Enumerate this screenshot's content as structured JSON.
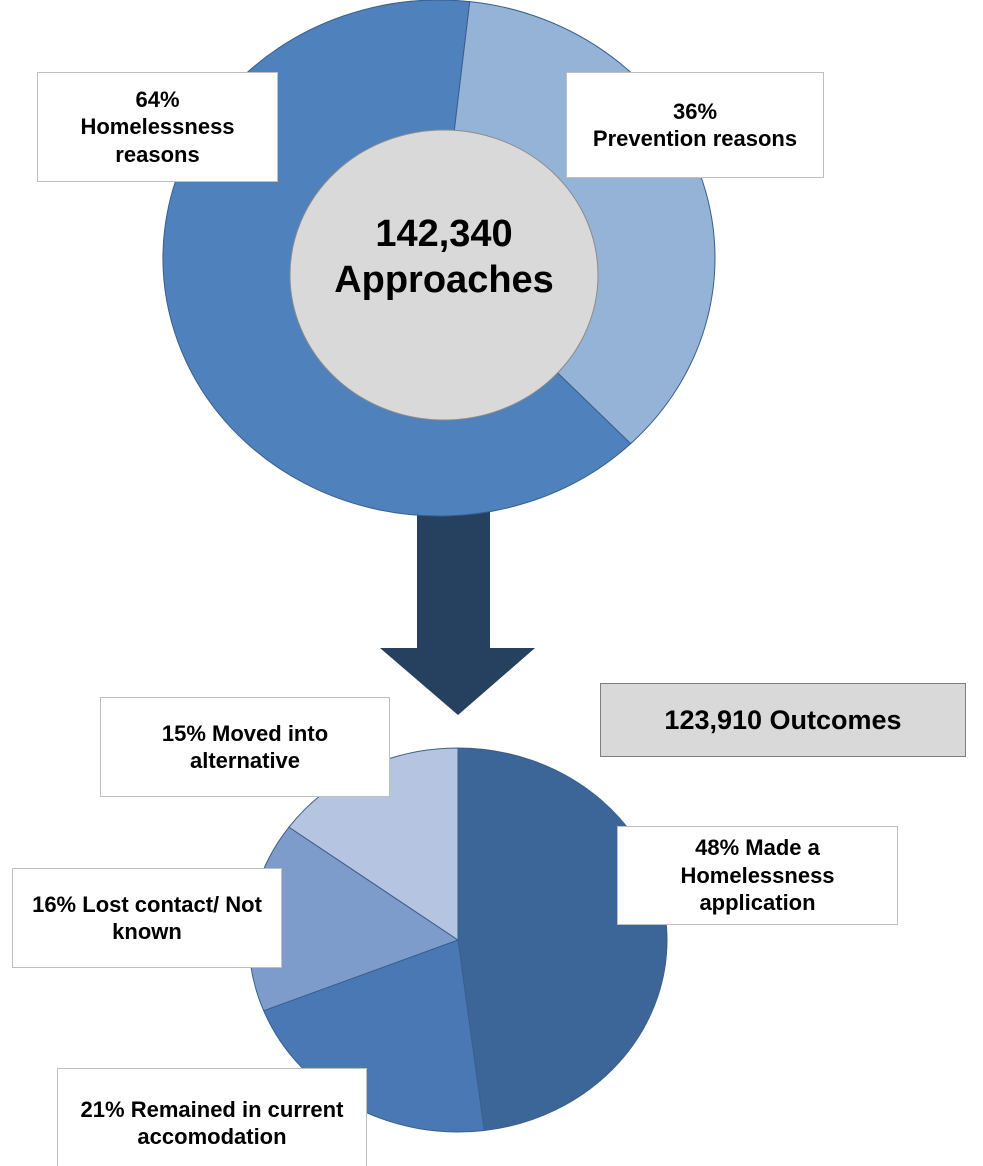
{
  "chart_data": [
    {
      "type": "donut",
      "center_label": "142,340 Approaches",
      "categories": [
        "Homelessness reasons",
        "Prevention reasons"
      ],
      "values": [
        64,
        36
      ],
      "value_labels": [
        "64%",
        "36%"
      ],
      "colors": [
        "#4f81bd",
        "#95b3d7"
      ]
    },
    {
      "type": "pie",
      "annotation": "123,910 Outcomes",
      "categories": [
        "Made a Homelessness application",
        "Remained in current accomodation",
        "Lost contact/ Not known",
        "Moved into alternative"
      ],
      "values": [
        48,
        21,
        16,
        15
      ],
      "value_labels": [
        "48%",
        "21%",
        "16%",
        "15%"
      ],
      "colors": [
        "#3d6698",
        "#4a78b4",
        "#7d9ccb",
        "#b5c4e0"
      ]
    }
  ]
}
